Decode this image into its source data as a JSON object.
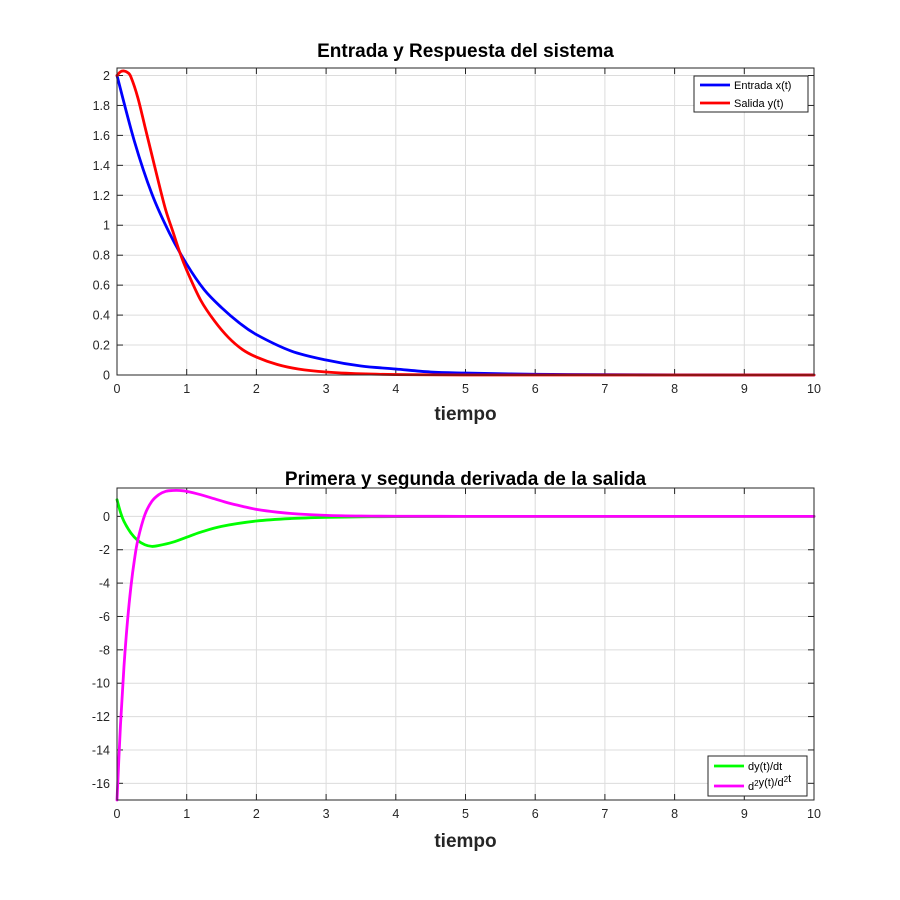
{
  "chart_data": [
    {
      "type": "line",
      "title": "Entrada y Respuesta del sistema",
      "xlabel": "tiempo",
      "ylabel": "",
      "xlim": [
        0,
        10
      ],
      "ylim": [
        0,
        2.05
      ],
      "xticks": [
        "0",
        "1",
        "2",
        "3",
        "4",
        "5",
        "6",
        "7",
        "8",
        "9",
        "10"
      ],
      "yticks": [
        "0",
        "0.2",
        "0.4",
        "0.6",
        "0.8",
        "1",
        "1.2",
        "1.4",
        "1.6",
        "1.8",
        "2"
      ],
      "grid": true,
      "legend_position": "top-right",
      "series": [
        {
          "name": "Entrada x(t)",
          "color": "#0000ff",
          "x": [
            0,
            0.25,
            0.5,
            0.75,
            1,
            1.25,
            1.5,
            1.75,
            2,
            2.5,
            3,
            3.5,
            4,
            4.5,
            5,
            6,
            7,
            8,
            9,
            10
          ],
          "y": [
            2.0,
            1.56,
            1.21,
            0.95,
            0.74,
            0.57,
            0.45,
            0.35,
            0.27,
            0.16,
            0.1,
            0.06,
            0.04,
            0.02,
            0.013,
            0.005,
            0.002,
            0.001,
            0.0,
            0.0
          ]
        },
        {
          "name": "Salida y(t)",
          "color": "#ff0000",
          "x": [
            0,
            0.05,
            0.1,
            0.15,
            0.2,
            0.3,
            0.4,
            0.5,
            0.6,
            0.7,
            0.8,
            0.9,
            1.0,
            1.2,
            1.4,
            1.6,
            1.8,
            2.0,
            2.3,
            2.6,
            3.0,
            3.5,
            4.0,
            5.0,
            6.0,
            7.0,
            8.0,
            9.0,
            10.0
          ],
          "y": [
            2.0,
            2.025,
            2.03,
            2.02,
            1.99,
            1.85,
            1.66,
            1.47,
            1.28,
            1.1,
            0.96,
            0.82,
            0.7,
            0.5,
            0.36,
            0.25,
            0.17,
            0.12,
            0.07,
            0.04,
            0.02,
            0.008,
            0.003,
            0.0,
            0.0,
            0.0,
            0.0,
            0.0,
            0.0
          ]
        }
      ]
    },
    {
      "type": "line",
      "title": "Primera y segunda derivada de la salida",
      "xlabel": "tiempo",
      "ylabel": "",
      "xlim": [
        0,
        10
      ],
      "ylim": [
        -17,
        1.7
      ],
      "xticks": [
        "0",
        "1",
        "2",
        "3",
        "4",
        "5",
        "6",
        "7",
        "8",
        "9",
        "10"
      ],
      "yticks": [
        "0",
        "-2",
        "-4",
        "-6",
        "-8",
        "-10",
        "-12",
        "-14",
        "-16"
      ],
      "grid": true,
      "legend_position": "bottom-right",
      "series": [
        {
          "name": "dy(t)/dt",
          "color": "#00ff00",
          "x": [
            0,
            0.05,
            0.1,
            0.2,
            0.3,
            0.4,
            0.5,
            0.6,
            0.8,
            1.0,
            1.2,
            1.5,
            2.0,
            2.5,
            3.0,
            3.5,
            4.0,
            5.0,
            6.0,
            7.0,
            8.0,
            9.0,
            10.0
          ],
          "y": [
            1.0,
            0.25,
            -0.3,
            -1.0,
            -1.45,
            -1.7,
            -1.8,
            -1.75,
            -1.55,
            -1.25,
            -0.95,
            -0.6,
            -0.28,
            -0.13,
            -0.06,
            -0.03,
            -0.015,
            -0.002,
            0.0,
            0.0,
            0.0,
            0.0,
            0.0
          ]
        },
        {
          "name": "d2y(t)/d2t",
          "color": "#ff00ff",
          "x": [
            0,
            0.05,
            0.1,
            0.15,
            0.2,
            0.25,
            0.3,
            0.4,
            0.5,
            0.6,
            0.7,
            0.8,
            0.9,
            1.0,
            1.2,
            1.4,
            1.6,
            1.8,
            2.0,
            2.3,
            2.6,
            3.0,
            3.5,
            4.0,
            5.0,
            6.0,
            7.0,
            8.0,
            9.0,
            10.0
          ],
          "y": [
            -17.0,
            -12.5,
            -9.0,
            -6.3,
            -4.2,
            -2.6,
            -1.4,
            0.1,
            0.9,
            1.3,
            1.5,
            1.55,
            1.55,
            1.5,
            1.3,
            1.05,
            0.8,
            0.6,
            0.42,
            0.25,
            0.14,
            0.06,
            0.02,
            0.008,
            0.0,
            0.0,
            0.0,
            0.0,
            0.0,
            0.0
          ]
        }
      ]
    }
  ]
}
